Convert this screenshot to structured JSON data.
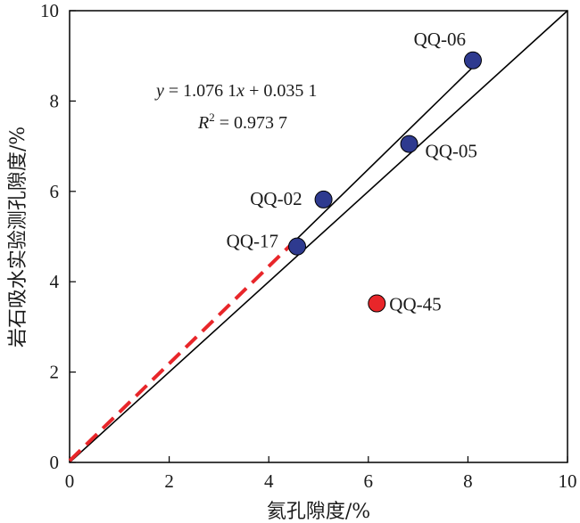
{
  "chart_data": {
    "type": "scatter",
    "title": "",
    "xlabel": "氦孔隙度/%",
    "ylabel": "岩石吸水实验测孔隙度/%",
    "xlim": [
      0,
      10
    ],
    "ylim": [
      0,
      10
    ],
    "xticks": [
      "0",
      "2",
      "4",
      "6",
      "8",
      "10"
    ],
    "yticks": [
      "0",
      "2",
      "4",
      "6",
      "8",
      "10"
    ],
    "grid": false,
    "points": [
      {
        "label": "QQ-06",
        "x": 8.1,
        "y": 8.9,
        "color": "#2e3a8f"
      },
      {
        "label": "QQ-05",
        "x": 6.82,
        "y": 7.05,
        "color": "#2e3a8f"
      },
      {
        "label": "QQ-02",
        "x": 5.1,
        "y": 5.82,
        "color": "#2e3a8f"
      },
      {
        "label": "QQ-17",
        "x": 4.57,
        "y": 4.78,
        "color": "#2e3a8f"
      },
      {
        "label": "QQ-45",
        "x": 6.17,
        "y": 3.52,
        "color": "#e8262a"
      }
    ],
    "reference_line": {
      "x": [
        0,
        10
      ],
      "y": [
        0,
        10
      ],
      "color": "#000000"
    },
    "fit_line": {
      "x": [
        4.5,
        8.1
      ],
      "slope": 1.0761,
      "intercept": 0.0351,
      "color": "#000000",
      "equation": {
        "y": "y",
        "rest": " = 1.076 1",
        "x": "x",
        "tail": " + 0.035 1"
      },
      "r2": {
        "R": "R",
        "sup": "2",
        "rest": " = 0.973 7"
      }
    },
    "extrapolation": {
      "x": [
        0,
        4.5
      ],
      "color": "#e8262a",
      "style": "dashed"
    }
  }
}
